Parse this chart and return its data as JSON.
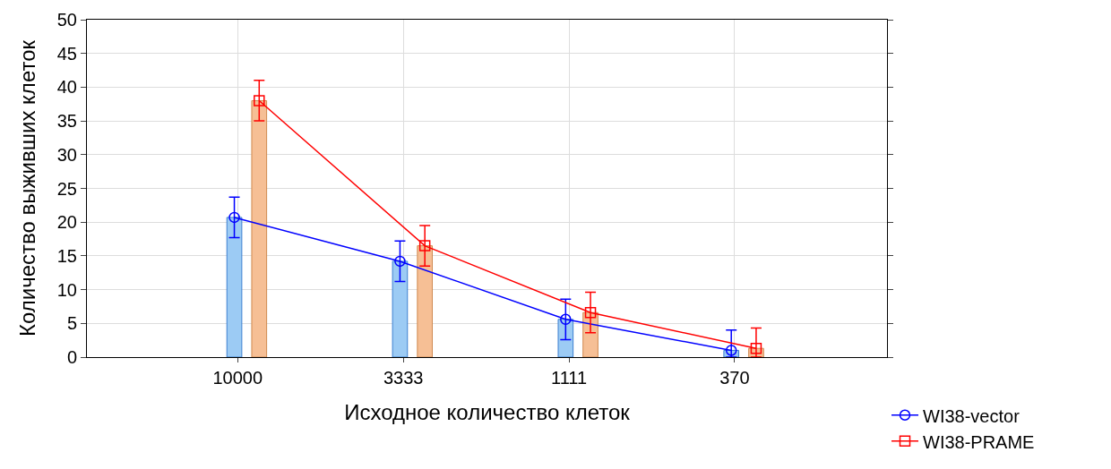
{
  "chart_data": {
    "type": "bar",
    "xlabel": "Исходное количество клеток",
    "ylabel": "Количество выживших клеток",
    "categories": [
      "10000",
      "3333",
      "1111",
      "370"
    ],
    "series": [
      {
        "color": "#9ccbf4",
        "values": [
          20.7,
          14.2,
          5.6,
          1.0
        ]
      },
      {
        "color": "#f6bf95",
        "values": [
          38.0,
          16.5,
          6.6,
          1.3
        ]
      },
      {
        "type": "line",
        "name": "WI38-vector",
        "color": "#0000ff",
        "marker": "circle",
        "values": [
          20.7,
          14.2,
          5.6,
          1.0
        ],
        "errors": [
          3,
          3,
          3,
          [
            0,
            4.0
          ]
        ]
      },
      {
        "type": "line",
        "name": "WI38-PRAME",
        "color": "#ff0000",
        "marker": "square",
        "values": [
          38.0,
          16.5,
          6.6,
          1.3
        ],
        "errors": [
          3,
          3,
          3,
          [
            0,
            4.3
          ]
        ]
      }
    ],
    "ylim": [
      0,
      50
    ],
    "yticks": [
      0,
      5,
      10,
      15,
      20,
      25,
      30,
      35,
      40,
      45,
      50
    ],
    "grid": true,
    "legend": "bottom right",
    "line_style": "solid"
  }
}
